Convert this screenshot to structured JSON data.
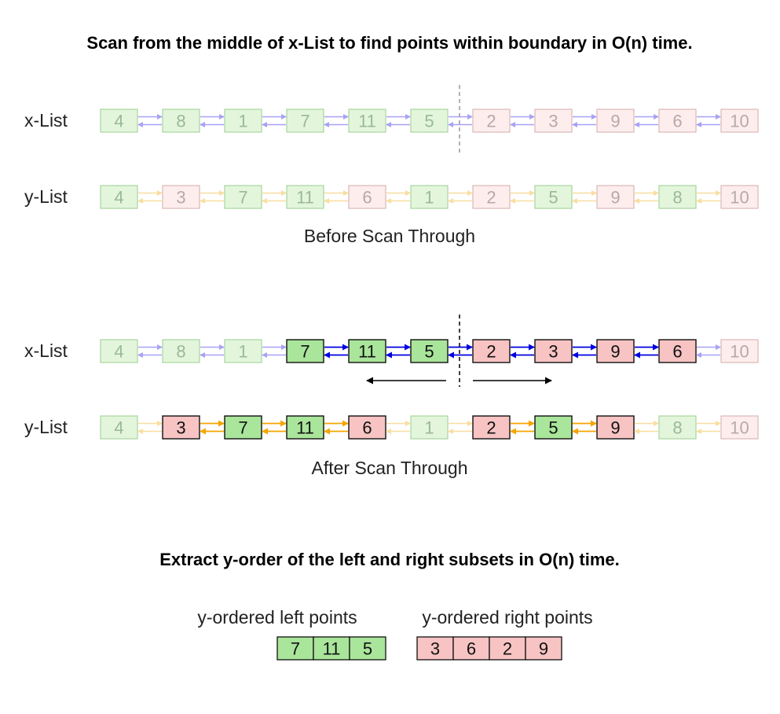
{
  "top_title": "Scan from the middle of x-List to find points within boundary in O(n) time.",
  "bottom_title": "Extract y-order of the left and right subsets in O(n) time.",
  "before": {
    "caption": "Before Scan Through",
    "x_list": {
      "label": "x-List",
      "nodes": [
        {
          "v": "4",
          "c": "g",
          "a": false
        },
        {
          "v": "8",
          "c": "g",
          "a": false
        },
        {
          "v": "1",
          "c": "g",
          "a": false
        },
        {
          "v": "7",
          "c": "g",
          "a": false
        },
        {
          "v": "11",
          "c": "g",
          "a": false
        },
        {
          "v": "5",
          "c": "g",
          "a": false
        },
        {
          "v": "2",
          "c": "r",
          "a": false
        },
        {
          "v": "3",
          "c": "r",
          "a": false
        },
        {
          "v": "9",
          "c": "r",
          "a": false
        },
        {
          "v": "6",
          "c": "r",
          "a": false
        },
        {
          "v": "10",
          "c": "r",
          "a": false
        }
      ],
      "links_active": [
        false,
        false,
        false,
        false,
        false,
        false,
        false,
        false,
        false,
        false
      ]
    },
    "y_list": {
      "label": "y-List",
      "nodes": [
        {
          "v": "4",
          "c": "g",
          "a": false
        },
        {
          "v": "3",
          "c": "r",
          "a": false
        },
        {
          "v": "7",
          "c": "g",
          "a": false
        },
        {
          "v": "11",
          "c": "g",
          "a": false
        },
        {
          "v": "6",
          "c": "r",
          "a": false
        },
        {
          "v": "1",
          "c": "g",
          "a": false
        },
        {
          "v": "2",
          "c": "r",
          "a": false
        },
        {
          "v": "5",
          "c": "g",
          "a": false
        },
        {
          "v": "9",
          "c": "r",
          "a": false
        },
        {
          "v": "8",
          "c": "g",
          "a": false
        },
        {
          "v": "10",
          "c": "r",
          "a": false
        }
      ],
      "links_active": [
        false,
        false,
        false,
        false,
        false,
        false,
        false,
        false,
        false,
        false
      ]
    }
  },
  "after": {
    "caption": "After Scan Through",
    "x_list": {
      "label": "x-List",
      "nodes": [
        {
          "v": "4",
          "c": "g",
          "a": false
        },
        {
          "v": "8",
          "c": "g",
          "a": false
        },
        {
          "v": "1",
          "c": "g",
          "a": false
        },
        {
          "v": "7",
          "c": "g",
          "a": true
        },
        {
          "v": "11",
          "c": "g",
          "a": true
        },
        {
          "v": "5",
          "c": "g",
          "a": true
        },
        {
          "v": "2",
          "c": "r",
          "a": true
        },
        {
          "v": "3",
          "c": "r",
          "a": true
        },
        {
          "v": "9",
          "c": "r",
          "a": true
        },
        {
          "v": "6",
          "c": "r",
          "a": true
        },
        {
          "v": "10",
          "c": "r",
          "a": false
        }
      ],
      "links_active": [
        false,
        false,
        false,
        true,
        true,
        true,
        true,
        true,
        true,
        false
      ]
    },
    "y_list": {
      "label": "y-List",
      "nodes": [
        {
          "v": "4",
          "c": "g",
          "a": false
        },
        {
          "v": "3",
          "c": "r",
          "a": true
        },
        {
          "v": "7",
          "c": "g",
          "a": true
        },
        {
          "v": "11",
          "c": "g",
          "a": true
        },
        {
          "v": "6",
          "c": "r",
          "a": true
        },
        {
          "v": "1",
          "c": "g",
          "a": false
        },
        {
          "v": "2",
          "c": "r",
          "a": true
        },
        {
          "v": "5",
          "c": "g",
          "a": true
        },
        {
          "v": "9",
          "c": "r",
          "a": true
        },
        {
          "v": "8",
          "c": "g",
          "a": false
        },
        {
          "v": "10",
          "c": "r",
          "a": false
        }
      ],
      "links_active": [
        false,
        true,
        true,
        true,
        false,
        false,
        true,
        true,
        false,
        false
      ]
    }
  },
  "extract": {
    "left_label": "y-ordered left points",
    "right_label": "y-ordered right points",
    "left_values": [
      "7",
      "11",
      "5"
    ],
    "right_values": [
      "3",
      "6",
      "2",
      "9"
    ]
  },
  "colors": {
    "green_fill_faded": "#e3f6dc",
    "green_stroke_faded": "#a9d59c",
    "green_text_faded": "#9cb896",
    "red_fill_faded": "#fdeeed",
    "red_stroke_faded": "#d9b8b8",
    "red_text_faded": "#b8a9a9",
    "green_fill_active": "#a9e59a",
    "red_fill_active": "#f7c3c3",
    "active_stroke": "#111111",
    "x_link_faded": "#a8a2f5",
    "x_link_active": "#0000e0",
    "y_link_faded": "#f8dea0",
    "y_link_active": "#f5a500"
  }
}
